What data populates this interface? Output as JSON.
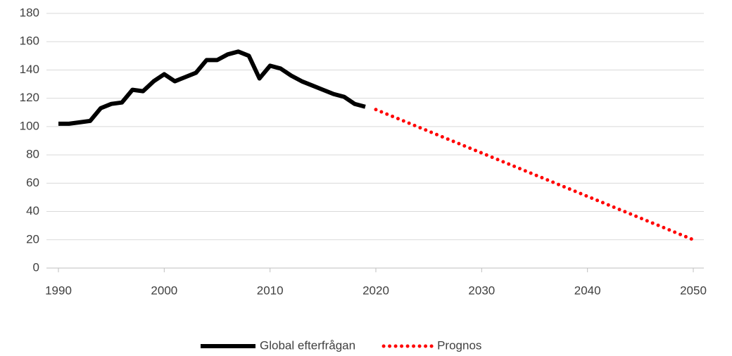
{
  "chart_data": {
    "type": "line",
    "series": [
      {
        "name": "Global efterfrågan",
        "color": "#000000",
        "style": "solid",
        "x": [
          1990,
          1991,
          1992,
          1993,
          1994,
          1995,
          1996,
          1997,
          1998,
          1999,
          2000,
          2001,
          2002,
          2003,
          2004,
          2005,
          2006,
          2007,
          2008,
          2009,
          2010,
          2011,
          2012,
          2013,
          2014,
          2015,
          2016,
          2017,
          2018,
          2019
        ],
        "values": [
          102,
          102,
          103,
          104,
          113,
          116,
          117,
          126,
          125,
          132,
          137,
          132,
          135,
          138,
          147,
          147,
          151,
          153,
          150,
          134,
          143,
          141,
          136,
          132,
          129,
          126,
          123,
          121,
          116,
          114
        ]
      },
      {
        "name": "Prognos",
        "color": "#ff0000",
        "style": "dotted",
        "x": [
          2020,
          2050
        ],
        "values": [
          112,
          20
        ]
      }
    ],
    "xlim": [
      1990,
      2050
    ],
    "xticks": [
      1990,
      2000,
      2010,
      2020,
      2030,
      2040,
      2050
    ],
    "ylim": [
      0,
      180
    ],
    "yticks": [
      0,
      20,
      40,
      60,
      80,
      100,
      120,
      140,
      160,
      180
    ],
    "grid": true,
    "legend": "bottom"
  }
}
